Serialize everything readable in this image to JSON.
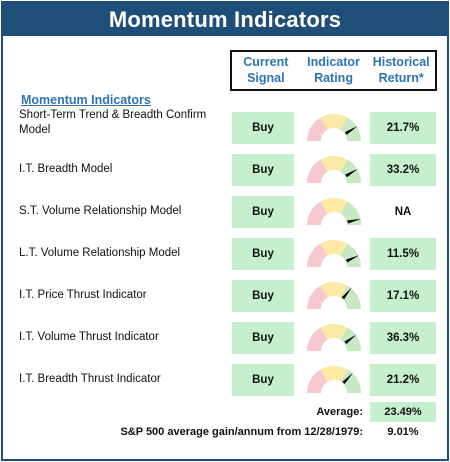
{
  "title": "Momentum Indicators",
  "headers": {
    "signal": [
      "Current",
      "Signal"
    ],
    "rating": [
      "Indicator",
      "Rating"
    ],
    "return": [
      "Historical",
      "Return*"
    ]
  },
  "section_label": "Momentum Indicators",
  "rows": [
    {
      "label": "Short-Term Trend & Breadth Confirm Model",
      "signal": "Buy",
      "gauge_level": 0.82,
      "return": "21.7%",
      "return_positive": true
    },
    {
      "label": "I.T. Breadth Model",
      "signal": "Buy",
      "gauge_level": 0.83,
      "return": "33.2%",
      "return_positive": true
    },
    {
      "label": "S.T. Volume Relationship Model",
      "signal": "Buy",
      "gauge_level": 0.93,
      "return": "NA",
      "return_positive": false
    },
    {
      "label": "L.T. Volume Relationship Model",
      "signal": "Buy",
      "gauge_level": 0.86,
      "return": "11.5%",
      "return_positive": true
    },
    {
      "label": "I.T. Price Thrust Indicator",
      "signal": "Buy",
      "gauge_level": 0.72,
      "return": "17.1%",
      "return_positive": true
    },
    {
      "label": "I.T. Volume Thrust Indicator",
      "signal": "Buy",
      "gauge_level": 0.8,
      "return": "36.3%",
      "return_positive": true
    },
    {
      "label": "I.T. Breadth Thrust Indicator",
      "signal": "Buy",
      "gauge_level": 0.74,
      "return": "21.2%",
      "return_positive": true
    }
  ],
  "average": {
    "label": "Average:",
    "value": "23.49%"
  },
  "sp500": {
    "label": "S&P 500 average gain/annum from 12/28/1979:",
    "value": "9.01%"
  },
  "colors": {
    "title_bg": "#1f4e79",
    "header_text": "#2e74b5",
    "positive_fill": "#c6efce",
    "gauge_red": "#f8c8cf",
    "gauge_yellow": "#fce9a6",
    "gauge_green": "#c8e8c4",
    "needle": "#000000"
  }
}
